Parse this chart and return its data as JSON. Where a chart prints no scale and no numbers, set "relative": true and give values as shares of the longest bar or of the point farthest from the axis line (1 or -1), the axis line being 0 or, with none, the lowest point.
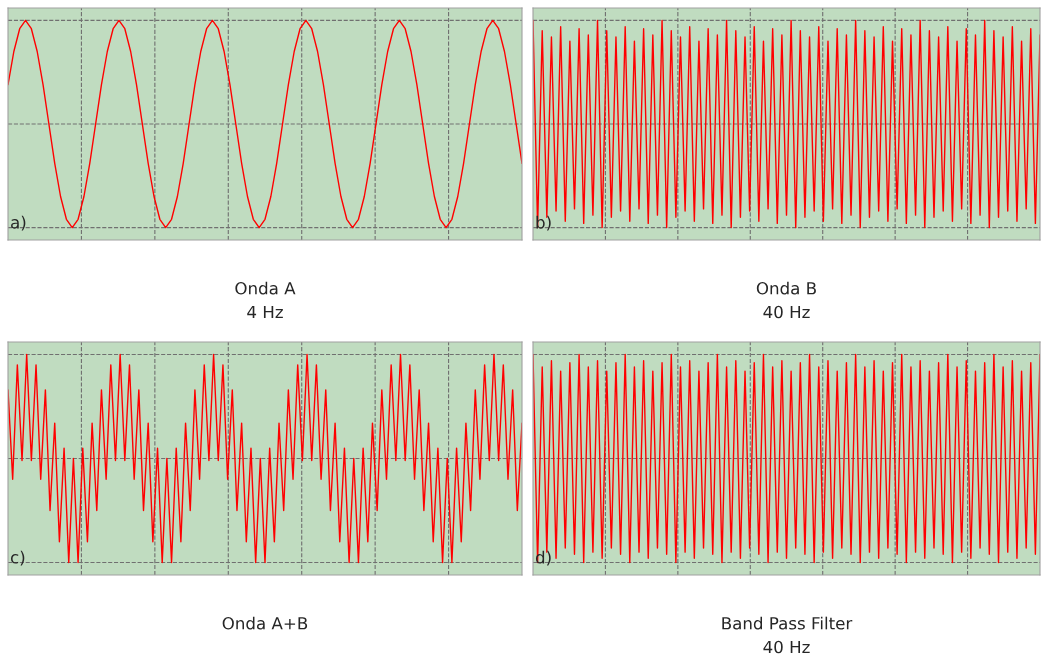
{
  "chart_data": [
    {
      "type": "line",
      "relative": true,
      "grid": true,
      "tick_labels": false,
      "color": "#ff0000",
      "xlabel": "Onda A\n4 Hz",
      "annotations": [
        "a)"
      ],
      "categories": [
        null,
        null,
        null,
        null,
        null,
        null,
        null,
        null,
        null,
        null,
        null,
        null,
        null,
        null,
        null,
        null,
        null,
        null,
        null,
        null,
        null,
        null,
        null,
        null,
        null,
        null,
        null,
        null,
        null,
        null,
        null,
        null,
        null,
        null,
        null,
        null,
        null,
        null,
        null,
        null,
        null,
        null,
        null,
        null,
        null,
        null,
        null,
        null,
        null,
        null,
        null,
        null,
        null,
        null,
        null,
        null,
        null,
        null,
        null,
        null,
        null,
        null,
        null,
        null,
        null,
        null,
        null,
        null,
        null,
        null,
        null,
        null,
        null,
        null,
        null,
        null,
        null,
        null,
        null,
        null,
        null,
        null,
        null,
        null,
        null,
        null,
        null,
        null,
        null
      ],
      "values": [
        0.69,
        0.85,
        0.96,
        1,
        0.96,
        0.85,
        0.69,
        0.5,
        0.31,
        0.15,
        0.04,
        0,
        0.04,
        0.15,
        0.31,
        0.5,
        0.69,
        0.85,
        0.96,
        1,
        0.96,
        0.85,
        0.69,
        0.5,
        0.31,
        0.15,
        0.04,
        0,
        0.04,
        0.15,
        0.31,
        0.5,
        0.69,
        0.85,
        0.96,
        1,
        0.96,
        0.85,
        0.69,
        0.5,
        0.31,
        0.15,
        0.04,
        0,
        0.04,
        0.15,
        0.31,
        0.5,
        0.69,
        0.85,
        0.96,
        1,
        0.96,
        0.85,
        0.69,
        0.5,
        0.31,
        0.15,
        0.04,
        0,
        0.04,
        0.15,
        0.31,
        0.5,
        0.69,
        0.85,
        0.96,
        1,
        0.96,
        0.85,
        0.69,
        0.5,
        0.31,
        0.15,
        0.04,
        0,
        0.04,
        0.15,
        0.31,
        0.5,
        0.69,
        0.85,
        0.96,
        1,
        0.96,
        0.85,
        0.69,
        0.5,
        0.31
      ]
    },
    {
      "type": "line",
      "relative": true,
      "grid": true,
      "tick_labels": false,
      "color": "#ff0000",
      "xlabel": "Onda B\n40 Hz",
      "annotations": [
        "b)"
      ],
      "categories": [
        null,
        null,
        null,
        null,
        null,
        null,
        null,
        null,
        null,
        null,
        null,
        null,
        null,
        null,
        null,
        null,
        null,
        null,
        null,
        null,
        null,
        null,
        null,
        null,
        null,
        null,
        null,
        null,
        null,
        null,
        null,
        null,
        null,
        null,
        null,
        null,
        null,
        null,
        null,
        null,
        null,
        null,
        null,
        null,
        null,
        null,
        null,
        null,
        null,
        null,
        null,
        null,
        null,
        null,
        null,
        null,
        null,
        null,
        null,
        null,
        null,
        null,
        null,
        null,
        null,
        null,
        null,
        null,
        null,
        null,
        null,
        null,
        null,
        null,
        null,
        null,
        null,
        null,
        null,
        null,
        null,
        null,
        null,
        null,
        null,
        null,
        null,
        null,
        null,
        null,
        null,
        null,
        null,
        null,
        null,
        null,
        null,
        null,
        null,
        null,
        null,
        null,
        null,
        null,
        null,
        null,
        null,
        null,
        null,
        null,
        null
      ],
      "values": [
        1,
        0,
        0.95,
        0.05,
        0.92,
        0.08,
        0.97,
        0.03,
        0.9,
        0.09,
        0.96,
        0.02,
        0.93,
        0.06,
        1,
        0,
        0.95,
        0.05,
        0.92,
        0.08,
        0.97,
        0.03,
        0.9,
        0.09,
        0.96,
        0.02,
        0.93,
        0.06,
        1,
        0,
        0.95,
        0.05,
        0.92,
        0.08,
        0.97,
        0.03,
        0.9,
        0.09,
        0.96,
        0.02,
        0.93,
        0.06,
        1,
        0,
        0.95,
        0.05,
        0.92,
        0.08,
        0.97,
        0.03,
        0.9,
        0.09,
        0.96,
        0.02,
        0.93,
        0.06,
        1,
        0,
        0.95,
        0.05,
        0.92,
        0.08,
        0.97,
        0.03,
        0.9,
        0.09,
        0.96,
        0.02,
        0.93,
        0.06,
        1,
        0,
        0.95,
        0.05,
        0.92,
        0.08,
        0.97,
        0.03,
        0.9,
        0.09,
        0.96,
        0.02,
        0.93,
        0.06,
        1,
        0,
        0.95,
        0.05,
        0.92,
        0.08,
        0.97,
        0.03,
        0.9,
        0.09,
        0.96,
        0.02,
        0.93,
        0.06,
        1,
        0,
        0.95,
        0.05,
        0.92,
        0.08,
        0.97,
        0.03,
        0.9,
        0.09,
        0.96,
        0.02,
        0.93
      ]
    },
    {
      "type": "line",
      "relative": true,
      "grid": true,
      "tick_labels": false,
      "color": "#ff0000",
      "xlabel": "Onda A+B",
      "annotations": [
        "c)"
      ],
      "categories": [
        null,
        null,
        null,
        null,
        null,
        null,
        null,
        null,
        null,
        null,
        null,
        null,
        null,
        null,
        null,
        null,
        null,
        null,
        null,
        null,
        null,
        null,
        null,
        null,
        null,
        null,
        null,
        null,
        null,
        null,
        null,
        null,
        null,
        null,
        null,
        null,
        null,
        null,
        null,
        null,
        null,
        null,
        null,
        null,
        null,
        null,
        null,
        null,
        null,
        null,
        null,
        null,
        null,
        null,
        null,
        null,
        null,
        null,
        null,
        null,
        null,
        null,
        null,
        null,
        null,
        null,
        null,
        null,
        null,
        null,
        null,
        null,
        null,
        null,
        null,
        null,
        null,
        null,
        null,
        null,
        null,
        null,
        null,
        null,
        null,
        null,
        null,
        null,
        null,
        null,
        null,
        null,
        null,
        null,
        null,
        null,
        null,
        null,
        null,
        null,
        null,
        null,
        null,
        null,
        null,
        null,
        null,
        null,
        null,
        null,
        null
      ],
      "values": [
        0.83,
        0.4,
        0.95,
        0.49,
        1,
        0.49,
        0.95,
        0.4,
        0.83,
        0.25,
        0.67,
        0.1,
        0.55,
        0,
        0.5,
        0,
        0.55,
        0.1,
        0.67,
        0.25,
        0.83,
        0.4,
        0.95,
        0.49,
        1,
        0.49,
        0.95,
        0.4,
        0.83,
        0.25,
        0.67,
        0.1,
        0.55,
        0,
        0.5,
        0,
        0.55,
        0.1,
        0.67,
        0.25,
        0.83,
        0.4,
        0.95,
        0.49,
        1,
        0.49,
        0.95,
        0.4,
        0.83,
        0.25,
        0.67,
        0.1,
        0.55,
        0,
        0.5,
        0,
        0.55,
        0.1,
        0.67,
        0.25,
        0.83,
        0.4,
        0.95,
        0.49,
        1,
        0.49,
        0.95,
        0.4,
        0.83,
        0.25,
        0.67,
        0.1,
        0.55,
        0,
        0.5,
        0,
        0.55,
        0.1,
        0.67,
        0.25,
        0.83,
        0.4,
        0.95,
        0.49,
        1,
        0.49,
        0.95,
        0.4,
        0.83,
        0.25,
        0.67,
        0.1,
        0.55,
        0,
        0.5,
        0,
        0.55,
        0.1,
        0.67,
        0.25,
        0.83,
        0.4,
        0.95,
        0.49,
        1,
        0.49,
        0.95,
        0.4,
        0.83,
        0.25,
        0.67
      ]
    },
    {
      "type": "line",
      "relative": true,
      "grid": true,
      "tick_labels": false,
      "color": "#ff0000",
      "xlabel": "Band Pass Filter\n40 Hz",
      "annotations": [
        "d)"
      ],
      "categories": [
        null,
        null,
        null,
        null,
        null,
        null,
        null,
        null,
        null,
        null,
        null,
        null,
        null,
        null,
        null,
        null,
        null,
        null,
        null,
        null,
        null,
        null,
        null,
        null,
        null,
        null,
        null,
        null,
        null,
        null,
        null,
        null,
        null,
        null,
        null,
        null,
        null,
        null,
        null,
        null,
        null,
        null,
        null,
        null,
        null,
        null,
        null,
        null,
        null,
        null,
        null,
        null,
        null,
        null,
        null,
        null,
        null,
        null,
        null,
        null,
        null,
        null,
        null,
        null,
        null,
        null,
        null,
        null,
        null,
        null,
        null,
        null,
        null,
        null,
        null,
        null,
        null,
        null,
        null,
        null,
        null,
        null,
        null,
        null,
        null,
        null,
        null,
        null,
        null,
        null,
        null,
        null,
        null,
        null,
        null,
        null,
        null,
        null,
        null,
        null,
        null,
        null,
        null,
        null,
        null,
        null,
        null,
        null,
        null,
        null,
        null
      ],
      "values": [
        1,
        0,
        0.94,
        0.05,
        0.97,
        0.02,
        0.92,
        0.07,
        0.96,
        0.04,
        1,
        0,
        0.94,
        0.05,
        0.97,
        0.02,
        0.92,
        0.07,
        0.96,
        0.04,
        1,
        0,
        0.94,
        0.05,
        0.97,
        0.02,
        0.92,
        0.07,
        0.96,
        0.04,
        1,
        0,
        0.94,
        0.05,
        0.97,
        0.02,
        0.92,
        0.07,
        0.96,
        0.04,
        1,
        0,
        0.94,
        0.05,
        0.97,
        0.02,
        0.92,
        0.07,
        0.96,
        0.04,
        1,
        0,
        0.94,
        0.05,
        0.97,
        0.02,
        0.92,
        0.07,
        0.96,
        0.04,
        1,
        0,
        0.94,
        0.05,
        0.97,
        0.02,
        0.92,
        0.07,
        0.96,
        0.04,
        1,
        0,
        0.94,
        0.05,
        0.97,
        0.02,
        0.92,
        0.07,
        0.96,
        0.04,
        1,
        0,
        0.94,
        0.05,
        0.97,
        0.02,
        0.92,
        0.07,
        0.96,
        0.04,
        1,
        0,
        0.94,
        0.05,
        0.97,
        0.02,
        0.92,
        0.07,
        0.96,
        0.04,
        1,
        0,
        0.94,
        0.05,
        0.97,
        0.02,
        0.92,
        0.07,
        0.96,
        0.04,
        1
      ]
    }
  ]
}
